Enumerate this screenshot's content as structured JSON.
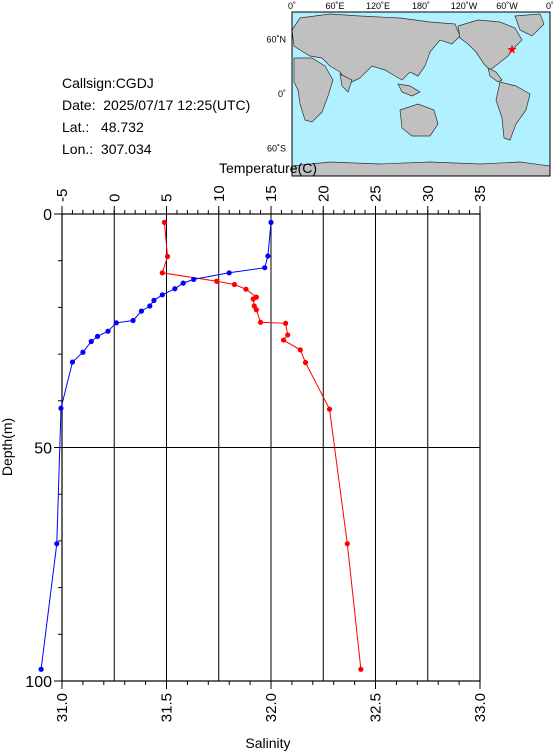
{
  "info": {
    "callsign": "Callsign:CGDJ",
    "date": "Date:  2025/07/17 12:25(UTC)",
    "lat": "Lat.:   48.732",
    "lon": "Lon.:  307.034"
  },
  "map": {
    "top_ticks": [
      "0˚",
      "60˚E",
      "120˚E",
      "180˚",
      "120˚W",
      "60˚W",
      "0˚"
    ],
    "lat_ticks": [
      "60˚N",
      "0˚",
      "60˚S"
    ],
    "station": {
      "lat": 48.732,
      "lon": 307.034
    },
    "colors": {
      "ocean": "#b0f0ff",
      "land": "#c0c0c0",
      "marker": "#ff0000"
    }
  },
  "chart_data": {
    "type": "line",
    "x_top": {
      "label": "Temperature(C)",
      "range": [
        -5,
        35
      ],
      "ticks": [
        "-5",
        "0",
        "5",
        "10",
        "15",
        "20",
        "25",
        "30",
        "35"
      ]
    },
    "x_bottom": {
      "label": "Salinity",
      "range": [
        31.0,
        33.0
      ],
      "ticks": [
        "31.0",
        "31.5",
        "32.0",
        "32.5",
        "33.0"
      ]
    },
    "y": {
      "label": "Depth(m)",
      "range": [
        0,
        100
      ],
      "ticks": [
        "0",
        "50",
        "100"
      ],
      "inverted": true
    },
    "grid": {
      "vertical": true,
      "horizontal_at": [
        50
      ]
    },
    "series": [
      {
        "axis": "temperature",
        "color": "#ff0000",
        "points": [
          [
            4.8,
            1.8
          ],
          [
            5.1,
            9.1
          ],
          [
            4.6,
            12.6
          ],
          [
            9.8,
            14.4
          ],
          [
            11.5,
            15.1
          ],
          [
            12.6,
            16.1
          ],
          [
            13.6,
            17.8
          ],
          [
            13.3,
            18.2
          ],
          [
            13.4,
            19.7
          ],
          [
            13.6,
            20.5
          ],
          [
            14.0,
            23.2
          ],
          [
            16.4,
            23.4
          ],
          [
            16.6,
            25.9
          ],
          [
            16.2,
            27.0
          ],
          [
            17.8,
            29.1
          ],
          [
            18.3,
            31.8
          ],
          [
            20.6,
            41.8
          ],
          [
            22.3,
            70.6
          ],
          [
            23.6,
            97.5
          ]
        ]
      },
      {
        "axis": "salinity",
        "color": "#0000ff",
        "points": [
          [
            32.0,
            1.8
          ],
          [
            31.985,
            9.0
          ],
          [
            31.97,
            11.5
          ],
          [
            31.8,
            12.6
          ],
          [
            31.63,
            14.0
          ],
          [
            31.58,
            14.8
          ],
          [
            31.54,
            16.0
          ],
          [
            31.48,
            17.3
          ],
          [
            31.44,
            18.5
          ],
          [
            31.42,
            19.7
          ],
          [
            31.38,
            20.8
          ],
          [
            31.34,
            22.8
          ],
          [
            31.26,
            23.3
          ],
          [
            31.22,
            25.1
          ],
          [
            31.17,
            26.2
          ],
          [
            31.14,
            27.3
          ],
          [
            31.1,
            29.6
          ],
          [
            31.05,
            31.7
          ],
          [
            30.995,
            41.6
          ],
          [
            30.975,
            70.6
          ],
          [
            30.9,
            97.5
          ]
        ]
      }
    ]
  }
}
